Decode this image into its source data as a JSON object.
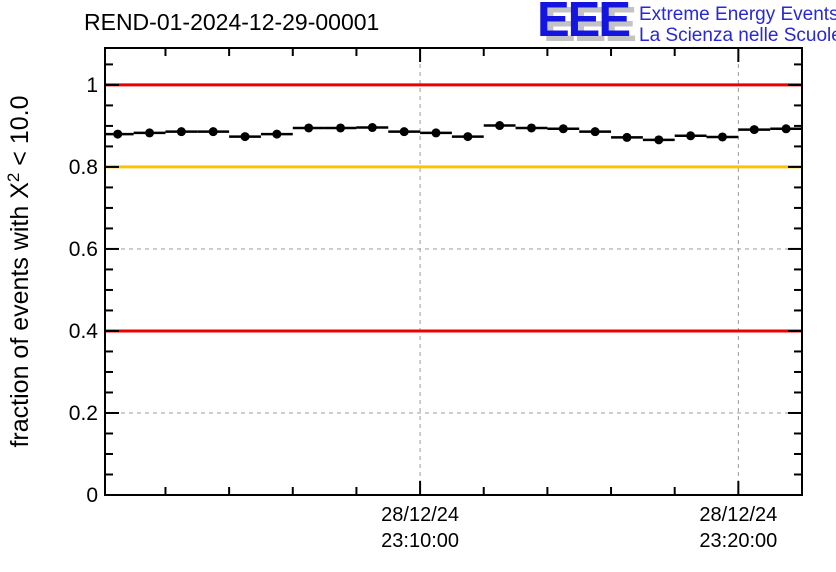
{
  "header": {
    "title": "REND-01-2024-12-29-00001",
    "logo": {
      "acronym": "EEE",
      "line1": "Extreme Energy Events",
      "line2": "La Scienza nelle Scuole",
      "acronym_color": "#1515e0",
      "text_color": "#2828d8",
      "shadow_color": "#c3c3c3"
    }
  },
  "chart_data": {
    "type": "scatter",
    "title": "REND-01-2024-12-29-00001",
    "ylabel": {
      "prefix": "fraction of events with X",
      "sup": "2",
      "suffix": " < 10.0"
    },
    "xlabel": "",
    "ylim": [
      0,
      1.09
    ],
    "xlim_minutes_after_23h": [
      0.1,
      22.0
    ],
    "xlim_times": [
      "23:00:06",
      "23:22:00"
    ],
    "date": "28/12/24",
    "grid": {
      "enabled": true,
      "style": "dashed",
      "color": "#9c9c9c"
    },
    "y_major_ticks": [
      {
        "value": 0.0,
        "label": "0"
      },
      {
        "value": 0.2,
        "label": "0.2"
      },
      {
        "value": 0.4,
        "label": "0.4"
      },
      {
        "value": 0.6,
        "label": "0.6"
      },
      {
        "value": 0.8,
        "label": "0.8"
      },
      {
        "value": 1.0,
        "label": "1"
      }
    ],
    "y_minor_step": 0.05,
    "x_major_ticks": [
      {
        "minutes_after_23h": 10,
        "label_line1": "28/12/24",
        "label_line2": "23:10:00"
      },
      {
        "minutes_after_23h": 20,
        "label_line1": "28/12/24",
        "label_line2": "23:20:00"
      }
    ],
    "x_minor_step_minutes": 2,
    "reference_lines": [
      {
        "name": "upper-alarm-line",
        "y": 1.0,
        "color": "#ee0000",
        "width": 3
      },
      {
        "name": "warning-line",
        "y": 0.8,
        "color": "#fcc400",
        "width": 3
      },
      {
        "name": "lower-alarm-line",
        "y": 0.4,
        "color": "#ee0000",
        "width": 3
      }
    ],
    "series": [
      {
        "name": "fraction-of-good-chi2-events",
        "marker": "filled-circle",
        "color": "#000000",
        "x_error_minutes": 0.5,
        "points": [
          {
            "time": "23:00:30",
            "minutes_after_23h": 0.5,
            "value": 0.88
          },
          {
            "time": "23:01:30",
            "minutes_after_23h": 1.5,
            "value": 0.883
          },
          {
            "time": "23:02:30",
            "minutes_after_23h": 2.5,
            "value": 0.886
          },
          {
            "time": "23:03:30",
            "minutes_after_23h": 3.5,
            "value": 0.886
          },
          {
            "time": "23:04:30",
            "minutes_after_23h": 4.5,
            "value": 0.874
          },
          {
            "time": "23:05:30",
            "minutes_after_23h": 5.5,
            "value": 0.88
          },
          {
            "time": "23:06:30",
            "minutes_after_23h": 6.5,
            "value": 0.895
          },
          {
            "time": "23:07:30",
            "minutes_after_23h": 7.5,
            "value": 0.895
          },
          {
            "time": "23:08:30",
            "minutes_after_23h": 8.5,
            "value": 0.896
          },
          {
            "time": "23:09:30",
            "minutes_after_23h": 9.5,
            "value": 0.886
          },
          {
            "time": "23:10:30",
            "minutes_after_23h": 10.5,
            "value": 0.883
          },
          {
            "time": "23:11:30",
            "minutes_after_23h": 11.5,
            "value": 0.874
          },
          {
            "time": "23:12:30",
            "minutes_after_23h": 12.5,
            "value": 0.901
          },
          {
            "time": "23:13:30",
            "minutes_after_23h": 13.5,
            "value": 0.895
          },
          {
            "time": "23:14:30",
            "minutes_after_23h": 14.5,
            "value": 0.893
          },
          {
            "time": "23:15:30",
            "minutes_after_23h": 15.5,
            "value": 0.886
          },
          {
            "time": "23:16:30",
            "minutes_after_23h": 16.5,
            "value": 0.872
          },
          {
            "time": "23:17:30",
            "minutes_after_23h": 17.5,
            "value": 0.866
          },
          {
            "time": "23:18:30",
            "minutes_after_23h": 18.5,
            "value": 0.876
          },
          {
            "time": "23:19:30",
            "minutes_after_23h": 19.5,
            "value": 0.873
          },
          {
            "time": "23:20:30",
            "minutes_after_23h": 20.5,
            "value": 0.891
          },
          {
            "time": "23:21:30",
            "minutes_after_23h": 21.5,
            "value": 0.893
          }
        ]
      }
    ],
    "legend": null
  }
}
